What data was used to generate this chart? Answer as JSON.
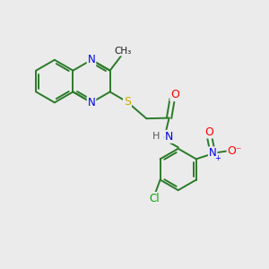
{
  "background_color": "#ebebeb",
  "atom_colors": {
    "C": "#1a1a1a",
    "N": "#0000ee",
    "O": "#ff0000",
    "S": "#ccaa00",
    "H": "#555555",
    "Cl": "#00aa00"
  },
  "bond_color": "#2a7a2a",
  "figsize": [
    3.0,
    3.0
  ],
  "dpi": 100
}
